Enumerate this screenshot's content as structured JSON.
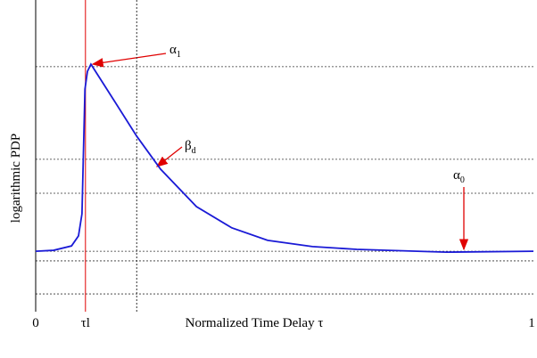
{
  "chart_data": {
    "type": "line",
    "y_label": "logarithmic PDP",
    "x_label": "Normalized Time Delay τ",
    "xlim": [
      0,
      1
    ],
    "ylim": [
      0,
      1
    ],
    "xticks": [
      0,
      {
        "value": 0.1,
        "label": "τl"
      },
      1
    ],
    "hlines": [
      0.786,
      0.489,
      0.38,
      0.194,
      0.163,
      0.057
    ],
    "vlines": [
      {
        "value": 0.1,
        "color": "#e00000"
      },
      {
        "value": 0.203,
        "color": "#333333"
      }
    ],
    "series": [
      {
        "name": "PDP",
        "color": "#1a1ad6",
        "x": [
          0,
          0.036,
          0.072,
          0.086,
          0.093,
          0.099,
          0.104,
          0.111,
          0.143,
          0.203,
          0.251,
          0.323,
          0.394,
          0.466,
          0.556,
          0.645,
          0.824,
          1
        ],
        "values": [
          0.194,
          0.197,
          0.211,
          0.243,
          0.314,
          0.714,
          0.771,
          0.794,
          0.714,
          0.563,
          0.457,
          0.337,
          0.269,
          0.229,
          0.209,
          0.2,
          0.191,
          0.194
        ]
      }
    ],
    "annotations": [
      {
        "symbol": "α",
        "sub": "1"
      },
      {
        "symbol": "β",
        "sub": "d"
      },
      {
        "symbol": "α",
        "sub": "0"
      }
    ]
  }
}
